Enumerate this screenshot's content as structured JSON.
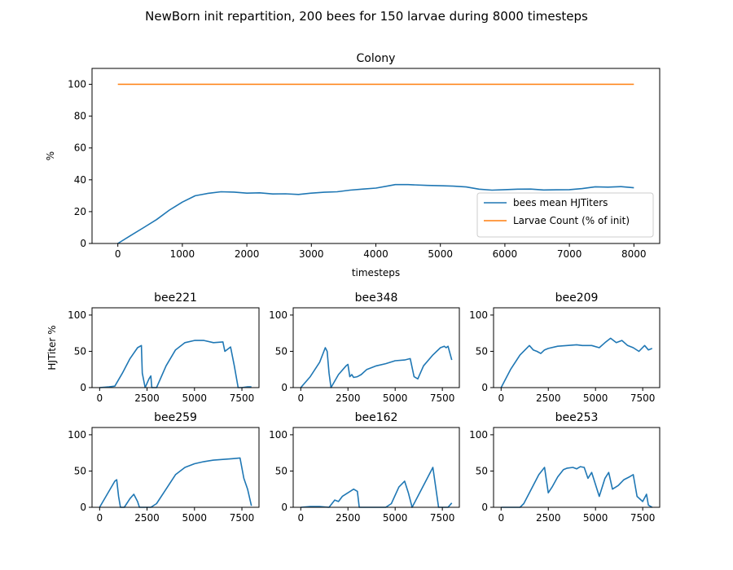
{
  "figure": {
    "suptitle": "NewBorn init repartition, 200 bees for 150 larvae during 8000 timesteps"
  },
  "chart_data": [
    {
      "type": "line",
      "title": "Colony",
      "xlabel": "timesteps",
      "ylabel": "%",
      "xlim": [
        -400,
        8400
      ],
      "ylim": [
        0,
        110
      ],
      "xticks": [
        0,
        1000,
        2000,
        3000,
        4000,
        5000,
        6000,
        7000,
        8000
      ],
      "yticks": [
        0,
        20,
        40,
        60,
        80,
        100
      ],
      "legend": "lower-right",
      "series": [
        {
          "name": "bees mean HJTiters",
          "color": "#1f77b4",
          "x": [
            0,
            200,
            400,
            600,
            800,
            1000,
            1200,
            1400,
            1600,
            1800,
            2000,
            2200,
            2400,
            2600,
            2800,
            3000,
            3200,
            3400,
            3600,
            3800,
            4000,
            4200,
            4300,
            4500,
            4800,
            5000,
            5200,
            5400,
            5600,
            5800,
            6000,
            6200,
            6400,
            6600,
            6800,
            7000,
            7200,
            7400,
            7600,
            7800,
            8000
          ],
          "y": [
            0,
            5,
            10,
            15,
            21,
            26,
            30,
            31.5,
            32.5,
            32.3,
            31.6,
            31.8,
            31.1,
            31.2,
            30.8,
            31.6,
            32.2,
            32.5,
            33.5,
            34.2,
            34.8,
            36.2,
            37,
            37,
            36.5,
            36.3,
            36,
            35.5,
            34.1,
            33.5,
            33.8,
            34.1,
            34.2,
            33.6,
            33.7,
            33.8,
            34.5,
            35.6,
            35.4,
            35.7,
            35
          ]
        },
        {
          "name": "Larvae Count (% of init)",
          "color": "#ff7f0e",
          "x": [
            0,
            8000
          ],
          "y": [
            100,
            100
          ]
        }
      ]
    },
    {
      "type": "line",
      "title": "bee221",
      "ylabel": "HJTiter %",
      "xlim": [
        -400,
        8400
      ],
      "ylim": [
        0,
        110
      ],
      "xticks": [
        0,
        2500,
        5000,
        7500
      ],
      "yticks": [
        0,
        50,
        100
      ],
      "series": [
        {
          "color": "#1f77b4",
          "x": [
            0,
            500,
            800,
            1200,
            1600,
            2000,
            2200,
            2250,
            2400,
            2600,
            2700,
            2750,
            3000,
            3500,
            4000,
            4500,
            5000,
            5500,
            6000,
            6500,
            6600,
            6900,
            7100,
            7300,
            7500,
            7800,
            8000
          ],
          "y": [
            0,
            1,
            2,
            20,
            40,
            55,
            58,
            20,
            0,
            12,
            16,
            0,
            0,
            30,
            52,
            62,
            65,
            65,
            62,
            63,
            50,
            56,
            30,
            0,
            0,
            1,
            1
          ]
        }
      ]
    },
    {
      "type": "line",
      "title": "bee348",
      "xlim": [
        -400,
        8400
      ],
      "ylim": [
        0,
        110
      ],
      "xticks": [
        0,
        2500,
        5000,
        7500
      ],
      "yticks": [
        0,
        50,
        100
      ],
      "series": [
        {
          "color": "#1f77b4",
          "x": [
            0,
            500,
            1000,
            1300,
            1400,
            1500,
            1600,
            2000,
            2400,
            2500,
            2600,
            2700,
            2800,
            3000,
            3200,
            3500,
            4000,
            4500,
            5000,
            5500,
            5800,
            6000,
            6200,
            6500,
            7000,
            7400,
            7600,
            7700,
            7800,
            8000
          ],
          "y": [
            0,
            15,
            35,
            55,
            50,
            20,
            0,
            18,
            30,
            32,
            15,
            18,
            14,
            15,
            18,
            25,
            30,
            33,
            37,
            38,
            40,
            15,
            12,
            30,
            45,
            55,
            57,
            55,
            57,
            38
          ]
        }
      ]
    },
    {
      "type": "line",
      "title": "bee209",
      "xlim": [
        -400,
        8400
      ],
      "ylim": [
        0,
        110
      ],
      "xticks": [
        0,
        2500,
        5000,
        7500
      ],
      "yticks": [
        0,
        50,
        100
      ],
      "series": [
        {
          "color": "#1f77b4",
          "x": [
            0,
            500,
            1000,
            1500,
            1700,
            1900,
            2100,
            2300,
            2500,
            3000,
            3500,
            4000,
            4300,
            4800,
            5200,
            5500,
            5800,
            6100,
            6400,
            6700,
            7000,
            7300,
            7600,
            7800,
            8000
          ],
          "y": [
            0,
            25,
            45,
            58,
            52,
            50,
            47,
            52,
            54,
            57,
            58,
            59,
            58,
            58,
            55,
            62,
            68,
            62,
            65,
            58,
            55,
            50,
            58,
            52,
            54
          ]
        }
      ]
    },
    {
      "type": "line",
      "title": "bee259",
      "xlim": [
        -400,
        8400
      ],
      "ylim": [
        0,
        110
      ],
      "xticks": [
        0,
        2500,
        5000,
        7500
      ],
      "yticks": [
        0,
        50,
        100
      ],
      "series": [
        {
          "color": "#1f77b4",
          "x": [
            0,
            400,
            800,
            900,
            1000,
            1100,
            1300,
            1600,
            1800,
            2000,
            2100,
            2300,
            2700,
            3000,
            3500,
            4000,
            4500,
            5000,
            5500,
            6000,
            6500,
            7000,
            7400,
            7600,
            7800,
            8000
          ],
          "y": [
            0,
            18,
            36,
            38,
            15,
            0,
            0,
            12,
            18,
            8,
            0,
            0,
            0,
            5,
            25,
            45,
            55,
            60,
            63,
            65,
            66,
            67,
            68,
            40,
            25,
            2
          ]
        }
      ]
    },
    {
      "type": "line",
      "title": "bee162",
      "xlim": [
        -400,
        8400
      ],
      "ylim": [
        0,
        110
      ],
      "xticks": [
        0,
        2500,
        5000,
        7500
      ],
      "yticks": [
        0,
        50,
        100
      ],
      "series": [
        {
          "color": "#1f77b4",
          "x": [
            0,
            500,
            1000,
            1500,
            1800,
            2000,
            2200,
            2500,
            2800,
            3000,
            3100,
            3500,
            4000,
            4500,
            4800,
            5200,
            5500,
            5700,
            5900,
            6200,
            6600,
            7000,
            7300,
            7800,
            8000
          ],
          "y": [
            0,
            1,
            1,
            0,
            10,
            8,
            15,
            20,
            25,
            22,
            0,
            0,
            0,
            0,
            5,
            28,
            36,
            20,
            0,
            15,
            35,
            55,
            0,
            0,
            6
          ]
        }
      ]
    },
    {
      "type": "line",
      "title": "bee253",
      "xlim": [
        -400,
        8400
      ],
      "ylim": [
        0,
        110
      ],
      "xticks": [
        0,
        2500,
        5000,
        7500
      ],
      "yticks": [
        0,
        50,
        100
      ],
      "series": [
        {
          "color": "#1f77b4",
          "x": [
            0,
            500,
            1000,
            1200,
            1500,
            1800,
            2000,
            2300,
            2500,
            2700,
            3000,
            3300,
            3500,
            3800,
            4000,
            4200,
            4400,
            4600,
            4800,
            5200,
            5500,
            5700,
            5900,
            6200,
            6500,
            6800,
            7000,
            7200,
            7500,
            7700,
            7800,
            8000
          ],
          "y": [
            0,
            0,
            0,
            5,
            20,
            35,
            45,
            55,
            20,
            28,
            42,
            52,
            54,
            55,
            53,
            56,
            55,
            40,
            48,
            15,
            40,
            48,
            25,
            30,
            38,
            42,
            45,
            15,
            8,
            18,
            3,
            0
          ]
        }
      ]
    }
  ]
}
